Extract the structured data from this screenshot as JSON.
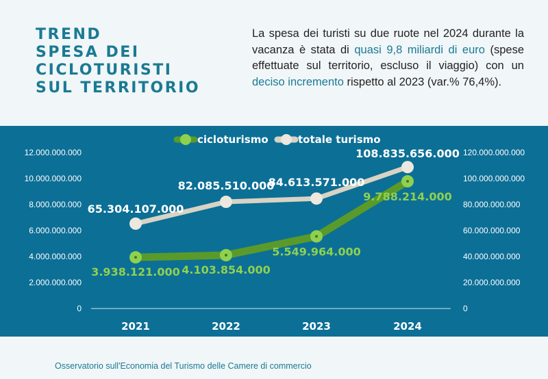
{
  "title": {
    "line1": "TREND",
    "line2": "SPESA DEI",
    "line3": "CICLOTURISTI",
    "line4": "SUL TERRITORIO"
  },
  "description": {
    "part1": "La spesa dei turisti su due ruote nel 2024 durante la vacanza è stata di ",
    "highlight1": "quasi 9,8 miliardi di euro",
    "part2": " (spese effettuate sul territorio, escluso il viaggio) con un ",
    "highlight2": "deciso incremento",
    "part3": " rispetto al 2023 (var.% 76,4%)."
  },
  "footer": "Osservatorio sull'Economia del Turismo delle Camere di commercio",
  "colors": {
    "accent": "#1a7a93",
    "panel": "#0c6f96",
    "cicloturismo": "#5a9a2a",
    "cicloturismo_point": "#8fd14f",
    "totale": "#d8d3c4"
  },
  "chart_data": {
    "type": "line",
    "categories": [
      "2021",
      "2022",
      "2023",
      "2024"
    ],
    "series": [
      {
        "name": "cicloturismo",
        "axis": "left",
        "values": [
          3938121000,
          4103854000,
          5549964000,
          9788214000
        ],
        "labels": [
          "3.938.121.000",
          "4.103.854.000",
          "5.549.964.000",
          "9.788.214.000"
        ]
      },
      {
        "name": "totale turismo",
        "axis": "right",
        "values": [
          65304107000,
          82085510000,
          84613571000,
          108835656000
        ],
        "labels": [
          "65.304.107.000",
          "82.085.510.000",
          "84.613.571.000",
          "108.835.656.000"
        ]
      }
    ],
    "y_left": {
      "lim": [
        0,
        12000000000
      ],
      "ticks": [
        "0",
        "2.000.000.000",
        "4.000.000.000",
        "6.000.000.000",
        "8.000.000.000",
        "10.000.000.000",
        "12.000.000.000"
      ]
    },
    "y_right": {
      "lim": [
        0,
        120000000000
      ],
      "ticks": [
        "0",
        "20.000.000.000",
        "40.000.000.000",
        "60.000.000.000",
        "80.000.000.000",
        "100.000.000.000",
        "120.000.000.000"
      ]
    },
    "legend_position": "top-center",
    "grid": false
  }
}
